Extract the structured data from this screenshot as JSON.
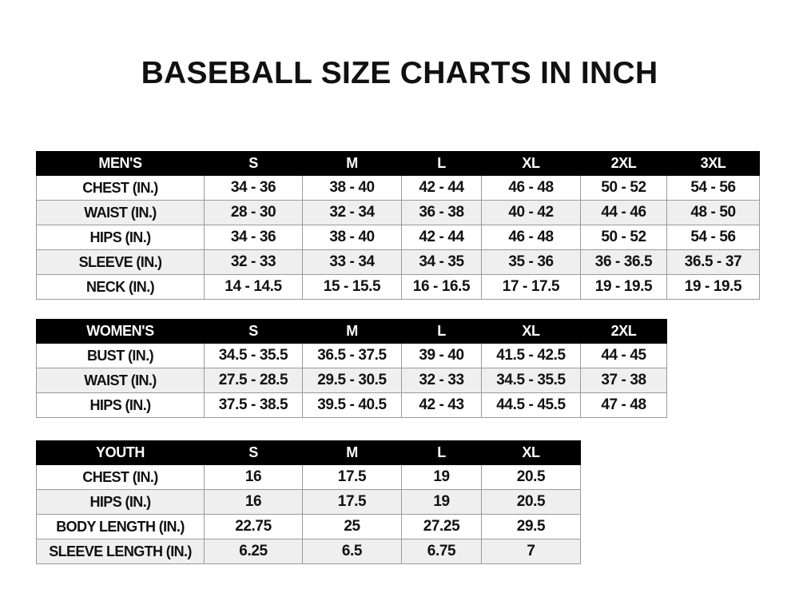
{
  "title": "BASEBALL SIZE CHARTS IN INCH",
  "tables": [
    {
      "id": "men",
      "header": [
        "MEN'S",
        "S",
        "M",
        "L",
        "XL",
        "2XL",
        "3XL"
      ],
      "rows": [
        [
          "CHEST (IN.)",
          "34 - 36",
          "38 - 40",
          "42 - 44",
          "46 - 48",
          "50 - 52",
          "54 - 56"
        ],
        [
          "WAIST (IN.)",
          "28 - 30",
          "32 - 34",
          "36 - 38",
          "40 - 42",
          "44 - 46",
          "48 - 50"
        ],
        [
          "HIPS (IN.)",
          "34 - 36",
          "38 - 40",
          "42 - 44",
          "46 - 48",
          "50 - 52",
          "54 - 56"
        ],
        [
          "SLEEVE (IN.)",
          "32 - 33",
          "33 - 34",
          "34 - 35",
          "35 - 36",
          "36 - 36.5",
          "36.5 - 37"
        ],
        [
          "NECK (IN.)",
          "14 - 14.5",
          "15 - 15.5",
          "16 - 16.5",
          "17 - 17.5",
          "19 - 19.5",
          "19 - 19.5"
        ]
      ]
    },
    {
      "id": "women",
      "header": [
        "WOMEN'S",
        "S",
        "M",
        "L",
        "XL",
        "2XL"
      ],
      "rows": [
        [
          "BUST (IN.)",
          "34.5 - 35.5",
          "36.5 - 37.5",
          "39 - 40",
          "41.5 - 42.5",
          "44 - 45"
        ],
        [
          "WAIST (IN.)",
          "27.5 - 28.5",
          "29.5 - 30.5",
          "32 - 33",
          "34.5 - 35.5",
          "37 - 38"
        ],
        [
          "HIPS (IN.)",
          "37.5 - 38.5",
          "39.5 - 40.5",
          "42 - 43",
          "44.5 - 45.5",
          "47 - 48"
        ]
      ]
    },
    {
      "id": "youth",
      "header": [
        "YOUTH",
        "S",
        "M",
        "L",
        "XL"
      ],
      "rows": [
        [
          "CHEST (IN.)",
          "16",
          "17.5",
          "19",
          "20.5"
        ],
        [
          "HIPS (IN.)",
          "16",
          "17.5",
          "19",
          "20.5"
        ],
        [
          "BODY LENGTH (IN.)",
          "22.75",
          "25",
          "27.25",
          "29.5"
        ],
        [
          "SLEEVE LENGTH (IN.)",
          "6.25",
          "6.5",
          "6.75",
          "7"
        ]
      ]
    }
  ],
  "colors": {
    "header_bg": "#000000",
    "header_text": "#ffffff",
    "alt_row": "#efefef",
    "border": "#9a9a9a"
  }
}
